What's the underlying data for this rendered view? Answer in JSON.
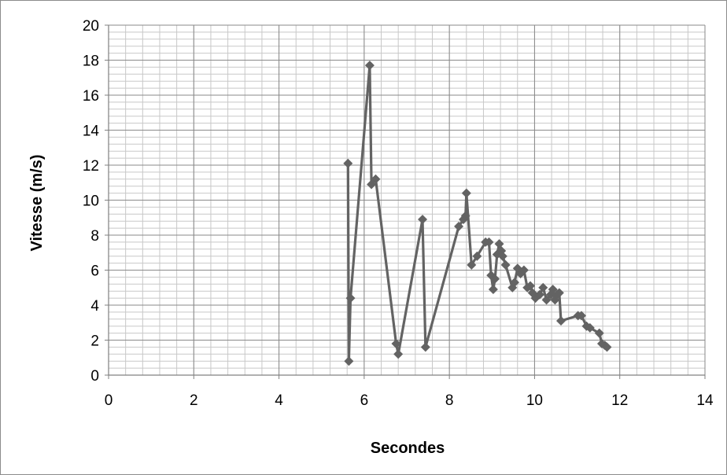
{
  "chart_data": {
    "type": "line",
    "title": "",
    "xlabel": "Secondes",
    "ylabel": "Vitesse (m/s)",
    "xlim": [
      0,
      14
    ],
    "ylim": [
      0,
      20
    ],
    "x_ticks": [
      0,
      2,
      4,
      6,
      8,
      10,
      12,
      14
    ],
    "y_ticks": [
      0,
      2,
      4,
      6,
      8,
      10,
      12,
      14,
      16,
      18,
      20
    ],
    "grid": true,
    "legend": "none",
    "marker": "diamond",
    "series": [
      {
        "color": "#636363",
        "points": [
          [
            5.62,
            12.1
          ],
          [
            5.64,
            0.8
          ],
          [
            5.68,
            4.4
          ],
          [
            6.13,
            17.7
          ],
          [
            6.17,
            10.9
          ],
          [
            6.27,
            11.2
          ],
          [
            6.75,
            1.8
          ],
          [
            6.8,
            1.2
          ],
          [
            7.37,
            8.9
          ],
          [
            7.44,
            1.6
          ],
          [
            8.22,
            8.5
          ],
          [
            8.33,
            8.9
          ],
          [
            8.38,
            9.1
          ],
          [
            8.4,
            10.4
          ],
          [
            8.52,
            6.3
          ],
          [
            8.65,
            6.8
          ],
          [
            8.85,
            7.6
          ],
          [
            8.93,
            7.6
          ],
          [
            8.98,
            5.7
          ],
          [
            9.03,
            4.9
          ],
          [
            9.07,
            5.5
          ],
          [
            9.12,
            6.9
          ],
          [
            9.17,
            7.5
          ],
          [
            9.22,
            7.1
          ],
          [
            9.25,
            6.8
          ],
          [
            9.32,
            6.3
          ],
          [
            9.48,
            5.0
          ],
          [
            9.53,
            5.3
          ],
          [
            9.6,
            6.1
          ],
          [
            9.67,
            5.8
          ],
          [
            9.75,
            6.0
          ],
          [
            9.83,
            5.0
          ],
          [
            9.9,
            5.1
          ],
          [
            9.95,
            4.7
          ],
          [
            10.02,
            4.4
          ],
          [
            10.12,
            4.6
          ],
          [
            10.2,
            5.0
          ],
          [
            10.28,
            4.3
          ],
          [
            10.38,
            4.6
          ],
          [
            10.43,
            4.9
          ],
          [
            10.48,
            4.3
          ],
          [
            10.53,
            4.6
          ],
          [
            10.58,
            4.7
          ],
          [
            10.62,
            3.1
          ],
          [
            11.02,
            3.4
          ],
          [
            11.1,
            3.4
          ],
          [
            11.22,
            2.8
          ],
          [
            11.3,
            2.7
          ],
          [
            11.52,
            2.4
          ],
          [
            11.58,
            1.8
          ],
          [
            11.65,
            1.7
          ],
          [
            11.7,
            1.6
          ]
        ]
      }
    ]
  }
}
